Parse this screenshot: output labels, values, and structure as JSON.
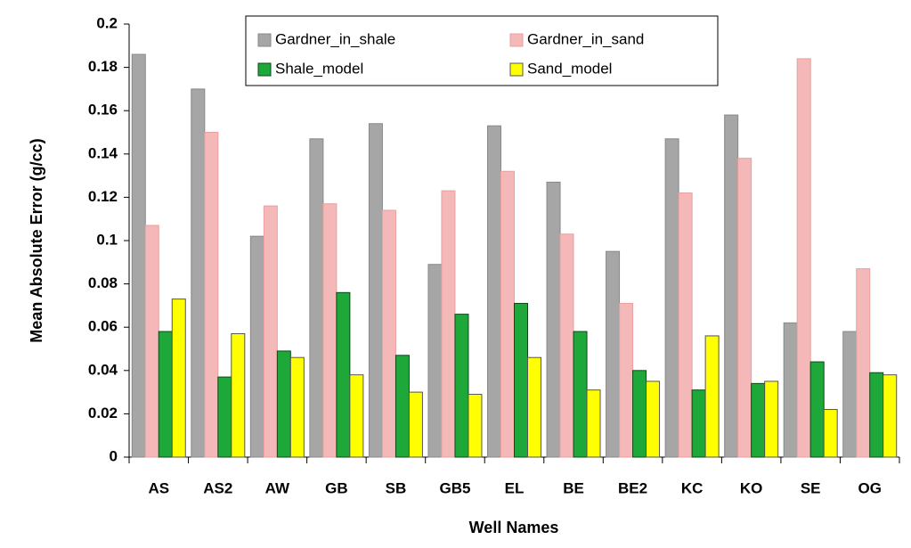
{
  "chart_data": {
    "type": "bar",
    "x_label": "Well Names",
    "y_label": "Mean Absolute Error (g/cc)",
    "categories": [
      "AS",
      "AS2",
      "AW",
      "GB",
      "SB",
      "GB5",
      "EL",
      "BE",
      "BE2",
      "KC",
      "KO",
      "SE",
      "OG"
    ],
    "series": [
      {
        "name": "Gardner_in_shale",
        "color": "#a6a6a6",
        "values": [
          0.186,
          0.17,
          0.102,
          0.147,
          0.154,
          0.089,
          0.153,
          0.127,
          0.095,
          0.147,
          0.158,
          0.062,
          0.058
        ]
      },
      {
        "name": "Gardner_in_sand",
        "color": "#f4b8b8",
        "values": [
          0.107,
          0.15,
          0.116,
          0.117,
          0.114,
          0.123,
          0.132,
          0.103,
          0.071,
          0.122,
          0.138,
          0.184,
          0.087
        ]
      },
      {
        "name": "Shale_model",
        "color": "#1fa83a",
        "values": [
          0.058,
          0.037,
          0.049,
          0.076,
          0.047,
          0.066,
          0.071,
          0.058,
          0.04,
          0.031,
          0.034,
          0.044,
          0.039
        ]
      },
      {
        "name": "Sand_model",
        "color": "#ffff00",
        "values": [
          0.073,
          0.057,
          0.046,
          0.038,
          0.03,
          0.029,
          0.046,
          0.031,
          0.035,
          0.056,
          0.035,
          0.022,
          0.038
        ]
      }
    ],
    "ylim": [
      0,
      0.2
    ],
    "yticks": [
      0,
      0.02,
      0.04,
      0.06,
      0.08,
      0.1,
      0.12,
      0.14,
      0.16,
      0.18,
      0.2
    ],
    "grid": false
  }
}
